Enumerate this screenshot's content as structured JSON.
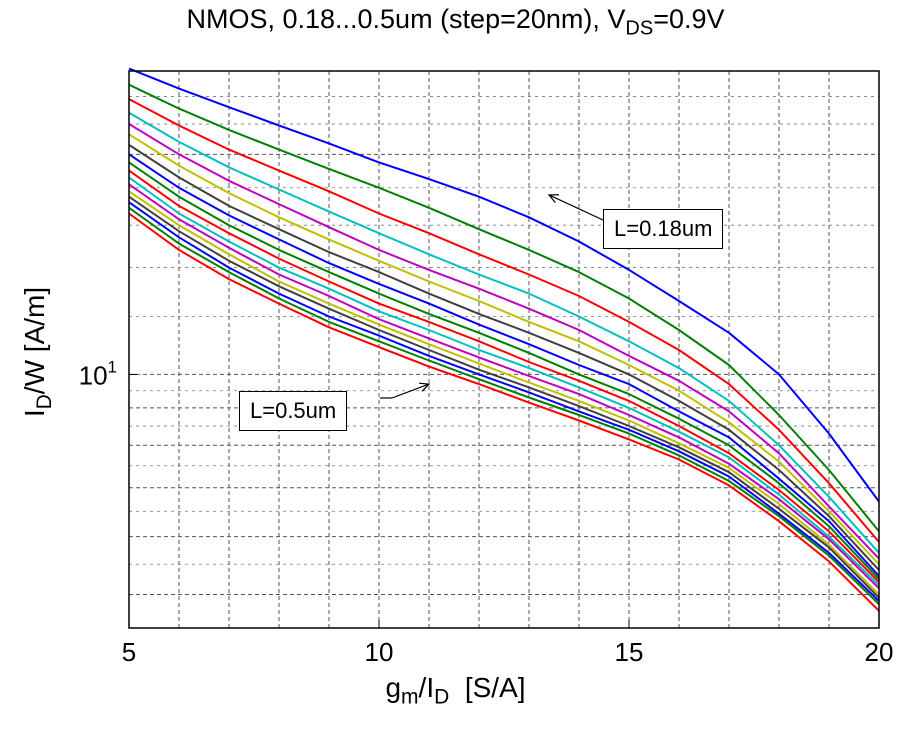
{
  "chart_data": {
    "type": "line",
    "title": {
      "main": "NMOS, 0.18...0.5um (step=20nm), V",
      "sub": "DS",
      "tail": "=0.9V"
    },
    "xlabel": {
      "main": "g",
      "sub1": "m",
      "mid": "/I",
      "sub2": "D",
      "tail": "  [S/A]"
    },
    "ylabel": {
      "main": "I",
      "sub": "D",
      "tail": "/W [A/m]"
    },
    "x_ticks": [
      "5",
      "10",
      "15",
      "20"
    ],
    "y_tick": {
      "base": "10",
      "exp": "1"
    },
    "xlim": [
      5,
      20
    ],
    "ylim": [
      4.5,
      26
    ],
    "yscale": "log",
    "grid": true,
    "annotations": [
      {
        "text": "L=0.18um",
        "x": 13.4,
        "y": 17.6
      },
      {
        "text": "L=0.5um",
        "x": 11.0,
        "y": 9.7
      }
    ],
    "x": [
      5,
      6,
      7,
      8,
      9,
      10,
      11,
      12,
      13,
      14,
      15,
      16,
      17,
      18,
      19,
      20
    ],
    "series": [
      {
        "color": "#0000ff",
        "values": [
          26.2,
          24.6,
          23.2,
          21.9,
          20.7,
          19.5,
          18.5,
          17.5,
          16.4,
          15.2,
          13.9,
          12.6,
          11.4,
          10.0,
          8.3,
          6.7
        ]
      },
      {
        "color": "#008000",
        "values": [
          24.9,
          23.1,
          21.6,
          20.3,
          19.1,
          18.0,
          16.9,
          15.8,
          14.8,
          13.8,
          12.7,
          11.5,
          10.3,
          8.8,
          7.4,
          6.1
        ]
      },
      {
        "color": "#ff0000",
        "values": [
          23.8,
          21.9,
          20.3,
          19.0,
          17.8,
          16.6,
          15.6,
          14.6,
          13.7,
          12.8,
          11.8,
          10.8,
          9.7,
          8.4,
          7.1,
          5.9
        ]
      },
      {
        "color": "#00bfbf",
        "values": [
          22.8,
          20.8,
          19.2,
          17.9,
          16.7,
          15.6,
          14.6,
          13.7,
          12.9,
          12.0,
          11.1,
          10.2,
          9.2,
          8.0,
          6.8,
          5.7
        ]
      },
      {
        "color": "#bf00bf",
        "values": [
          22.0,
          20.0,
          18.4,
          17.1,
          15.9,
          14.8,
          13.9,
          13.1,
          12.3,
          11.5,
          10.6,
          9.8,
          8.9,
          7.8,
          6.6,
          5.6
        ]
      },
      {
        "color": "#bfbf00",
        "values": [
          21.3,
          19.3,
          17.7,
          16.4,
          15.3,
          14.3,
          13.4,
          12.6,
          11.8,
          11.1,
          10.3,
          9.5,
          8.6,
          7.6,
          6.5,
          5.5
        ]
      },
      {
        "color": "#404040",
        "values": [
          20.6,
          18.6,
          17.0,
          15.8,
          14.7,
          13.8,
          12.9,
          12.1,
          11.4,
          10.7,
          10.0,
          9.2,
          8.4,
          7.4,
          6.4,
          5.4
        ]
      },
      {
        "color": "#0000ff",
        "values": [
          20.0,
          18.0,
          16.5,
          15.3,
          14.2,
          13.3,
          12.5,
          11.7,
          11.0,
          10.3,
          9.7,
          8.9,
          8.2,
          7.2,
          6.3,
          5.3
        ]
      },
      {
        "color": "#008000",
        "values": [
          19.5,
          17.5,
          16.0,
          14.8,
          13.8,
          12.9,
          12.1,
          11.4,
          10.7,
          10.0,
          9.4,
          8.7,
          8.0,
          7.1,
          6.2,
          5.25
        ]
      },
      {
        "color": "#ff0000",
        "values": [
          19.0,
          17.0,
          15.6,
          14.4,
          13.4,
          12.5,
          11.8,
          11.1,
          10.4,
          9.8,
          9.2,
          8.5,
          7.8,
          6.95,
          6.1,
          5.2
        ]
      },
      {
        "color": "#00bfbf",
        "values": [
          18.6,
          16.6,
          15.2,
          14.0,
          13.1,
          12.2,
          11.5,
          10.8,
          10.2,
          9.6,
          9.0,
          8.35,
          7.7,
          6.85,
          6.0,
          5.15
        ]
      },
      {
        "color": "#bf00bf",
        "values": [
          18.2,
          16.3,
          14.9,
          13.7,
          12.8,
          11.9,
          11.2,
          10.55,
          9.95,
          9.4,
          8.8,
          8.2,
          7.55,
          6.75,
          5.95,
          5.1
        ]
      },
      {
        "color": "#bfbf00",
        "values": [
          17.8,
          16.0,
          14.6,
          13.4,
          12.5,
          11.7,
          11.0,
          10.35,
          9.75,
          9.2,
          8.65,
          8.05,
          7.45,
          6.65,
          5.85,
          5.0
        ]
      },
      {
        "color": "#404040",
        "values": [
          17.5,
          15.7,
          14.3,
          13.2,
          12.3,
          11.5,
          10.8,
          10.15,
          9.6,
          9.05,
          8.5,
          7.95,
          7.35,
          6.55,
          5.8,
          4.95
        ]
      },
      {
        "color": "#0000ff",
        "values": [
          17.2,
          15.4,
          14.0,
          12.9,
          12.0,
          11.3,
          10.6,
          10.0,
          9.45,
          8.9,
          8.4,
          7.85,
          7.25,
          6.45,
          5.7,
          4.9
        ]
      },
      {
        "color": "#008000",
        "values": [
          16.9,
          15.1,
          13.8,
          12.7,
          11.8,
          11.1,
          10.45,
          9.85,
          9.3,
          8.8,
          8.3,
          7.75,
          7.15,
          6.4,
          5.65,
          4.85
        ]
      },
      {
        "color": "#ff0000",
        "values": [
          16.6,
          14.8,
          13.5,
          12.5,
          11.6,
          10.9,
          10.25,
          9.7,
          9.15,
          8.65,
          8.15,
          7.65,
          7.05,
          6.3,
          5.55,
          4.75
        ]
      }
    ]
  }
}
